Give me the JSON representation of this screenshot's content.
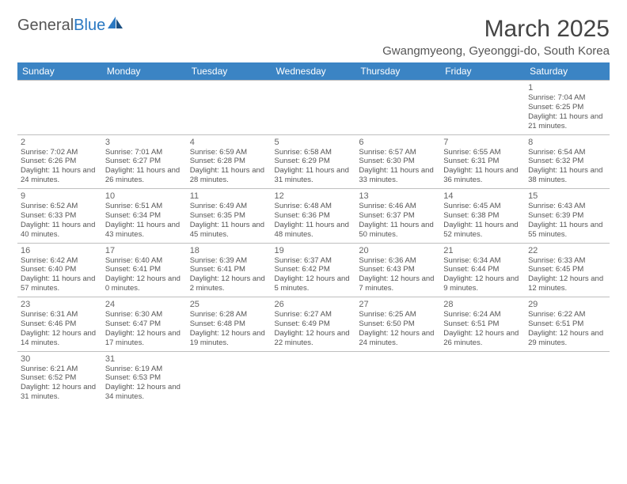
{
  "logo": {
    "text1": "General",
    "text2": "Blue"
  },
  "title": "March 2025",
  "location": "Gwangmyeong, Gyeonggi-do, South Korea",
  "colors": {
    "header_bg": "#3b84c4",
    "header_text": "#ffffff",
    "grid_line": "#bfbfbf",
    "text": "#555555",
    "title": "#444444"
  },
  "day_headers": [
    "Sunday",
    "Monday",
    "Tuesday",
    "Wednesday",
    "Thursday",
    "Friday",
    "Saturday"
  ],
  "weeks": [
    [
      null,
      null,
      null,
      null,
      null,
      null,
      {
        "n": "1",
        "sr": "7:04 AM",
        "ss": "6:25 PM",
        "dl": "11 hours and 21 minutes."
      }
    ],
    [
      {
        "n": "2",
        "sr": "7:02 AM",
        "ss": "6:26 PM",
        "dl": "11 hours and 24 minutes."
      },
      {
        "n": "3",
        "sr": "7:01 AM",
        "ss": "6:27 PM",
        "dl": "11 hours and 26 minutes."
      },
      {
        "n": "4",
        "sr": "6:59 AM",
        "ss": "6:28 PM",
        "dl": "11 hours and 28 minutes."
      },
      {
        "n": "5",
        "sr": "6:58 AM",
        "ss": "6:29 PM",
        "dl": "11 hours and 31 minutes."
      },
      {
        "n": "6",
        "sr": "6:57 AM",
        "ss": "6:30 PM",
        "dl": "11 hours and 33 minutes."
      },
      {
        "n": "7",
        "sr": "6:55 AM",
        "ss": "6:31 PM",
        "dl": "11 hours and 36 minutes."
      },
      {
        "n": "8",
        "sr": "6:54 AM",
        "ss": "6:32 PM",
        "dl": "11 hours and 38 minutes."
      }
    ],
    [
      {
        "n": "9",
        "sr": "6:52 AM",
        "ss": "6:33 PM",
        "dl": "11 hours and 40 minutes."
      },
      {
        "n": "10",
        "sr": "6:51 AM",
        "ss": "6:34 PM",
        "dl": "11 hours and 43 minutes."
      },
      {
        "n": "11",
        "sr": "6:49 AM",
        "ss": "6:35 PM",
        "dl": "11 hours and 45 minutes."
      },
      {
        "n": "12",
        "sr": "6:48 AM",
        "ss": "6:36 PM",
        "dl": "11 hours and 48 minutes."
      },
      {
        "n": "13",
        "sr": "6:46 AM",
        "ss": "6:37 PM",
        "dl": "11 hours and 50 minutes."
      },
      {
        "n": "14",
        "sr": "6:45 AM",
        "ss": "6:38 PM",
        "dl": "11 hours and 52 minutes."
      },
      {
        "n": "15",
        "sr": "6:43 AM",
        "ss": "6:39 PM",
        "dl": "11 hours and 55 minutes."
      }
    ],
    [
      {
        "n": "16",
        "sr": "6:42 AM",
        "ss": "6:40 PM",
        "dl": "11 hours and 57 minutes."
      },
      {
        "n": "17",
        "sr": "6:40 AM",
        "ss": "6:41 PM",
        "dl": "12 hours and 0 minutes."
      },
      {
        "n": "18",
        "sr": "6:39 AM",
        "ss": "6:41 PM",
        "dl": "12 hours and 2 minutes."
      },
      {
        "n": "19",
        "sr": "6:37 AM",
        "ss": "6:42 PM",
        "dl": "12 hours and 5 minutes."
      },
      {
        "n": "20",
        "sr": "6:36 AM",
        "ss": "6:43 PM",
        "dl": "12 hours and 7 minutes."
      },
      {
        "n": "21",
        "sr": "6:34 AM",
        "ss": "6:44 PM",
        "dl": "12 hours and 9 minutes."
      },
      {
        "n": "22",
        "sr": "6:33 AM",
        "ss": "6:45 PM",
        "dl": "12 hours and 12 minutes."
      }
    ],
    [
      {
        "n": "23",
        "sr": "6:31 AM",
        "ss": "6:46 PM",
        "dl": "12 hours and 14 minutes."
      },
      {
        "n": "24",
        "sr": "6:30 AM",
        "ss": "6:47 PM",
        "dl": "12 hours and 17 minutes."
      },
      {
        "n": "25",
        "sr": "6:28 AM",
        "ss": "6:48 PM",
        "dl": "12 hours and 19 minutes."
      },
      {
        "n": "26",
        "sr": "6:27 AM",
        "ss": "6:49 PM",
        "dl": "12 hours and 22 minutes."
      },
      {
        "n": "27",
        "sr": "6:25 AM",
        "ss": "6:50 PM",
        "dl": "12 hours and 24 minutes."
      },
      {
        "n": "28",
        "sr": "6:24 AM",
        "ss": "6:51 PM",
        "dl": "12 hours and 26 minutes."
      },
      {
        "n": "29",
        "sr": "6:22 AM",
        "ss": "6:51 PM",
        "dl": "12 hours and 29 minutes."
      }
    ],
    [
      {
        "n": "30",
        "sr": "6:21 AM",
        "ss": "6:52 PM",
        "dl": "12 hours and 31 minutes."
      },
      {
        "n": "31",
        "sr": "6:19 AM",
        "ss": "6:53 PM",
        "dl": "12 hours and 34 minutes."
      },
      null,
      null,
      null,
      null,
      null
    ]
  ],
  "labels": {
    "sunrise": "Sunrise:",
    "sunset": "Sunset:",
    "daylight": "Daylight:"
  }
}
